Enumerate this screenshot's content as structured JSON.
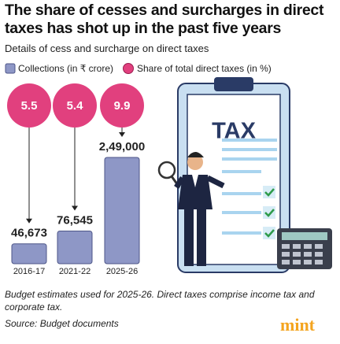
{
  "chart_data": {
    "type": "bar_bubble",
    "title": "The share of cesses and surcharges in direct taxes has shot up in the past five years",
    "subtitle": "Details of cess and surcharge on direct taxes",
    "categories": [
      "2016-17",
      "2021-22",
      "2025-26"
    ],
    "series": [
      {
        "name": "Collections (in ₹ crore)",
        "color": "#8e97c6",
        "values": [
          46673,
          76545,
          249000
        ],
        "value_labels": [
          "46,673",
          "76,545",
          "2,49,000"
        ]
      },
      {
        "name": "Share of total direct taxes (in %)",
        "color": "#e1407e",
        "values": [
          5.5,
          5.4,
          9.9
        ]
      }
    ],
    "note": "Budget estimates used for 2025-26. Direct taxes comprise income tax and corporate tax.",
    "source": "Source: Budget documents",
    "brand": "mint",
    "illustration_label": "TAX"
  }
}
